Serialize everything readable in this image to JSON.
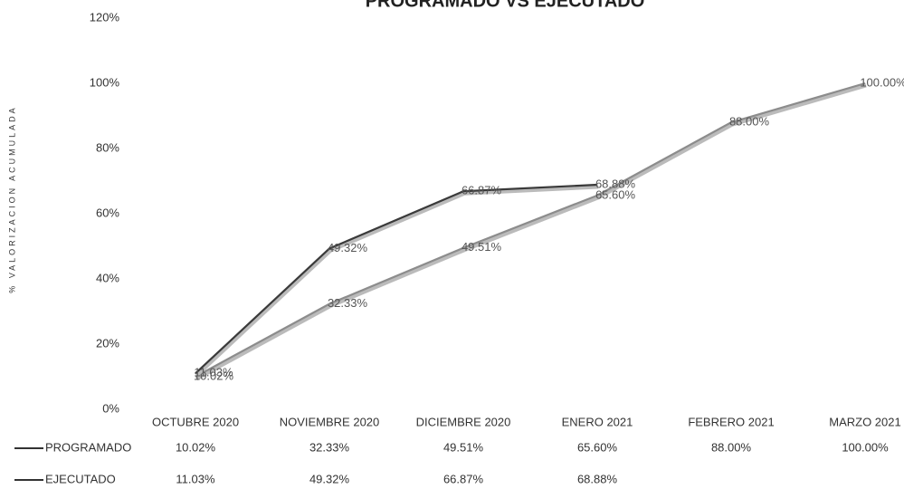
{
  "chart_data": {
    "type": "line",
    "title": "PROGRAMADO VS EJECUTADO",
    "y_label": "% VALORIZACION ACUMULADA",
    "categories": [
      "OCTUBRE 2020",
      "NOVIEMBRE 2020",
      "DICIEMBRE 2020",
      "ENERO 2021",
      "FEBRERO 2021",
      "MARZO 2021"
    ],
    "series": [
      {
        "name": "PROGRAMADO",
        "color": "#8c8c8c",
        "values": [
          10.02,
          32.33,
          49.51,
          65.6,
          88.0,
          100.0
        ],
        "value_labels": [
          "10.02%",
          "32.33%",
          "49.51%",
          "65.60%",
          "88.00%",
          "100.00%"
        ]
      },
      {
        "name": "EJECUTADO",
        "color": "#3a3a3a",
        "values": [
          11.03,
          49.32,
          66.87,
          68.88,
          null,
          null
        ],
        "value_labels": [
          "11.03%",
          "49.32%",
          "66.87%",
          "68.88%",
          null,
          null
        ]
      }
    ],
    "ylim": [
      0,
      120
    ],
    "yticks": [
      {
        "value": 0,
        "label": "0%"
      },
      {
        "value": 20,
        "label": "20%"
      },
      {
        "value": 40,
        "label": "40%"
      },
      {
        "value": 60,
        "label": "60%"
      },
      {
        "value": 80,
        "label": "80%"
      },
      {
        "value": 100,
        "label": "100%"
      },
      {
        "value": 120,
        "label": "120%"
      }
    ],
    "grid": false
  }
}
